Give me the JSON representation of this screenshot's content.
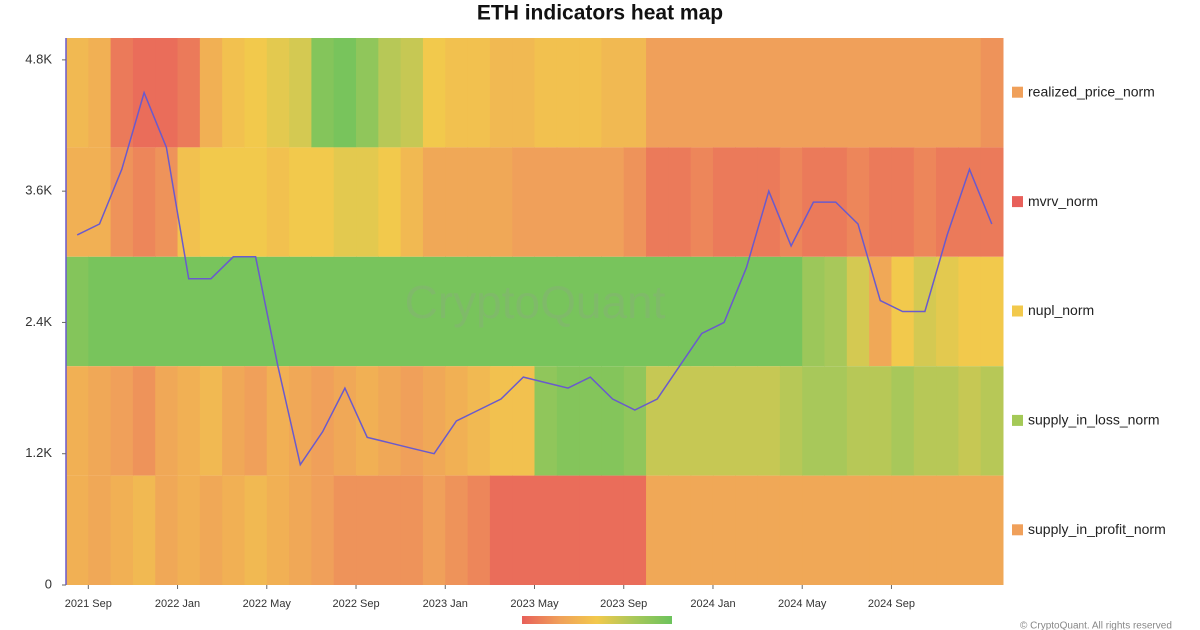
{
  "chart_data": {
    "type": "heatmap",
    "title": "ETH indicators heat map",
    "watermark": "CryptoQuant",
    "credit": "© CryptoQuant. All rights reserved",
    "x": [
      "2021-08",
      "2021-09",
      "2021-10",
      "2021-11",
      "2021-12",
      "2022-01",
      "2022-02",
      "2022-03",
      "2022-04",
      "2022-05",
      "2022-06",
      "2022-07",
      "2022-08",
      "2022-09",
      "2022-10",
      "2022-11",
      "2022-12",
      "2023-01",
      "2023-02",
      "2023-03",
      "2023-04",
      "2023-05",
      "2023-06",
      "2023-07",
      "2023-08",
      "2023-09",
      "2023-10",
      "2023-11",
      "2023-12",
      "2024-01",
      "2024-02",
      "2024-03",
      "2024-04",
      "2024-05",
      "2024-06",
      "2024-07",
      "2024-08",
      "2024-09",
      "2024-10",
      "2024-11",
      "2024-12",
      "2025-01"
    ],
    "xticks": [
      {
        "value": "2021-09",
        "label": "2021 Sep"
      },
      {
        "value": "2022-01",
        "label": "2022 Jan"
      },
      {
        "value": "2022-05",
        "label": "2022 May"
      },
      {
        "value": "2022-09",
        "label": "2022 Sep"
      },
      {
        "value": "2023-01",
        "label": "2023 Jan"
      },
      {
        "value": "2023-05",
        "label": "2023 May"
      },
      {
        "value": "2023-09",
        "label": "2023 Sep"
      },
      {
        "value": "2024-01",
        "label": "2024 Jan"
      },
      {
        "value": "2024-05",
        "label": "2024 May"
      },
      {
        "value": "2024-09",
        "label": "2024 Sep"
      }
    ],
    "ylim": [
      0,
      5000
    ],
    "yticks": [
      0,
      {
        "value": 1200,
        "label": "1.2K"
      },
      {
        "value": 2400,
        "label": "2.4K"
      },
      {
        "value": 3600,
        "label": "3.6K"
      },
      {
        "value": 4800,
        "label": "4.8K"
      }
    ],
    "zlim": [
      0,
      1
    ],
    "colorscale": [
      "#e8605a",
      "#f0a05a",
      "#f2c94c",
      "#a8c85a",
      "#6cc35c"
    ],
    "series": [
      {
        "name": "realized_price_norm",
        "color": "#f0a05a",
        "values": [
          0.4,
          0.35,
          0.1,
          0.05,
          0.05,
          0.1,
          0.35,
          0.45,
          0.5,
          0.55,
          0.6,
          0.9,
          0.95,
          0.85,
          0.7,
          0.65,
          0.5,
          0.45,
          0.45,
          0.4,
          0.4,
          0.45,
          0.45,
          0.45,
          0.4,
          0.4,
          0.25,
          0.25,
          0.25,
          0.25,
          0.25,
          0.25,
          0.25,
          0.25,
          0.25,
          0.25,
          0.25,
          0.25,
          0.25,
          0.25,
          0.25,
          0.2
        ]
      },
      {
        "name": "mvrv_norm",
        "color": "#e8605a",
        "values": [
          0.35,
          0.35,
          0.2,
          0.15,
          0.2,
          0.45,
          0.5,
          0.5,
          0.5,
          0.45,
          0.5,
          0.5,
          0.55,
          0.55,
          0.5,
          0.4,
          0.3,
          0.3,
          0.3,
          0.3,
          0.25,
          0.25,
          0.25,
          0.25,
          0.25,
          0.2,
          0.1,
          0.1,
          0.15,
          0.1,
          0.1,
          0.1,
          0.15,
          0.1,
          0.1,
          0.15,
          0.1,
          0.1,
          0.15,
          0.1,
          0.1,
          0.1
        ]
      },
      {
        "name": "nupl_norm",
        "color": "#f2c94c",
        "values": [
          0.9,
          0.95,
          0.95,
          0.95,
          0.95,
          0.95,
          0.95,
          0.95,
          0.95,
          0.95,
          0.95,
          0.95,
          0.95,
          0.95,
          0.95,
          0.95,
          0.95,
          0.95,
          0.95,
          0.95,
          0.95,
          0.95,
          0.95,
          0.95,
          0.95,
          0.95,
          0.95,
          0.95,
          0.95,
          0.95,
          0.95,
          0.95,
          0.95,
          0.8,
          0.75,
          0.6,
          0.3,
          0.5,
          0.6,
          0.55,
          0.5,
          0.5
        ]
      },
      {
        "name": "supply_in_loss_norm",
        "color": "#a4c957",
        "values": [
          0.35,
          0.3,
          0.25,
          0.2,
          0.3,
          0.35,
          0.4,
          0.3,
          0.25,
          0.35,
          0.3,
          0.25,
          0.3,
          0.35,
          0.3,
          0.25,
          0.3,
          0.35,
          0.4,
          0.45,
          0.45,
          0.85,
          0.9,
          0.9,
          0.9,
          0.85,
          0.65,
          0.65,
          0.65,
          0.65,
          0.65,
          0.65,
          0.7,
          0.75,
          0.75,
          0.7,
          0.7,
          0.75,
          0.7,
          0.7,
          0.65,
          0.7
        ]
      },
      {
        "name": "supply_in_profit_norm",
        "color": "#f0a05a",
        "values": [
          0.35,
          0.3,
          0.35,
          0.4,
          0.3,
          0.35,
          0.3,
          0.35,
          0.4,
          0.35,
          0.3,
          0.25,
          0.2,
          0.2,
          0.2,
          0.2,
          0.25,
          0.2,
          0.15,
          0.05,
          0.05,
          0.05,
          0.05,
          0.05,
          0.05,
          0.05,
          0.3,
          0.3,
          0.3,
          0.3,
          0.3,
          0.3,
          0.3,
          0.3,
          0.3,
          0.3,
          0.3,
          0.3,
          0.3,
          0.3,
          0.3,
          0.3
        ]
      }
    ],
    "price": {
      "color": "#6a5acd",
      "values": [
        3200,
        3300,
        3800,
        4500,
        4000,
        2800,
        2800,
        3000,
        3000,
        2000,
        1100,
        1400,
        1800,
        1350,
        1300,
        1250,
        1200,
        1500,
        1600,
        1700,
        1900,
        1850,
        1800,
        1900,
        1700,
        1600,
        1700,
        2000,
        2300,
        2400,
        2900,
        3600,
        3100,
        3500,
        3500,
        3300,
        2600,
        2500,
        2500,
        3200,
        3800,
        3300
      ]
    }
  }
}
